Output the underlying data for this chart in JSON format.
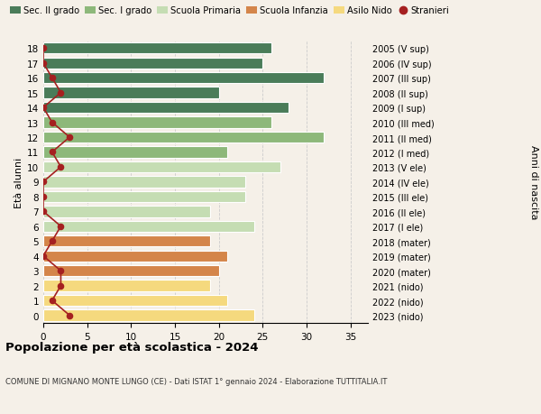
{
  "ages": [
    18,
    17,
    16,
    15,
    14,
    13,
    12,
    11,
    10,
    9,
    8,
    7,
    6,
    5,
    4,
    3,
    2,
    1,
    0
  ],
  "bar_values": [
    26,
    25,
    32,
    20,
    28,
    26,
    32,
    21,
    27,
    23,
    23,
    19,
    24,
    19,
    21,
    20,
    19,
    21,
    24
  ],
  "stranieri_values": [
    0,
    0,
    1,
    2,
    0,
    1,
    3,
    1,
    2,
    0,
    0,
    0,
    2,
    1,
    0,
    2,
    2,
    1,
    3
  ],
  "right_labels": [
    "2005 (V sup)",
    "2006 (IV sup)",
    "2007 (III sup)",
    "2008 (II sup)",
    "2009 (I sup)",
    "2010 (III med)",
    "2011 (II med)",
    "2012 (I med)",
    "2013 (V ele)",
    "2014 (IV ele)",
    "2015 (III ele)",
    "2016 (II ele)",
    "2017 (I ele)",
    "2018 (mater)",
    "2019 (mater)",
    "2020 (mater)",
    "2021 (nido)",
    "2022 (nido)",
    "2023 (nido)"
  ],
  "color_per_age": [
    "#4a7c59",
    "#4a7c59",
    "#4a7c59",
    "#4a7c59",
    "#4a7c59",
    "#8db87a",
    "#8db87a",
    "#8db87a",
    "#c5ddb3",
    "#c5ddb3",
    "#c5ddb3",
    "#c5ddb3",
    "#c5ddb3",
    "#d4854a",
    "#d4854a",
    "#d4854a",
    "#f5d97e",
    "#f5d97e",
    "#f5d97e"
  ],
  "stranieri_color": "#a52020",
  "background_color": "#f5f0e8",
  "title": "Popolazione per età scolastica - 2024",
  "subtitle": "COMUNE DI MIGNANO MONTE LUNGO (CE) - Dati ISTAT 1° gennaio 2024 - Elaborazione TUTTITALIA.IT",
  "ylabel_left": "Età alunni",
  "ylabel_right": "Anni di nascita",
  "xlim": [
    0,
    37
  ],
  "xticks": [
    0,
    5,
    10,
    15,
    20,
    25,
    30,
    35
  ],
  "legend_items": [
    {
      "label": "Sec. II grado",
      "color": "#4a7c59",
      "type": "patch"
    },
    {
      "label": "Sec. I grado",
      "color": "#8db87a",
      "type": "patch"
    },
    {
      "label": "Scuola Primaria",
      "color": "#c5ddb3",
      "type": "patch"
    },
    {
      "label": "Scuola Infanzia",
      "color": "#d4854a",
      "type": "patch"
    },
    {
      "label": "Asilo Nido",
      "color": "#f5d97e",
      "type": "patch"
    },
    {
      "label": "Stranieri",
      "color": "#a52020",
      "type": "marker"
    }
  ]
}
